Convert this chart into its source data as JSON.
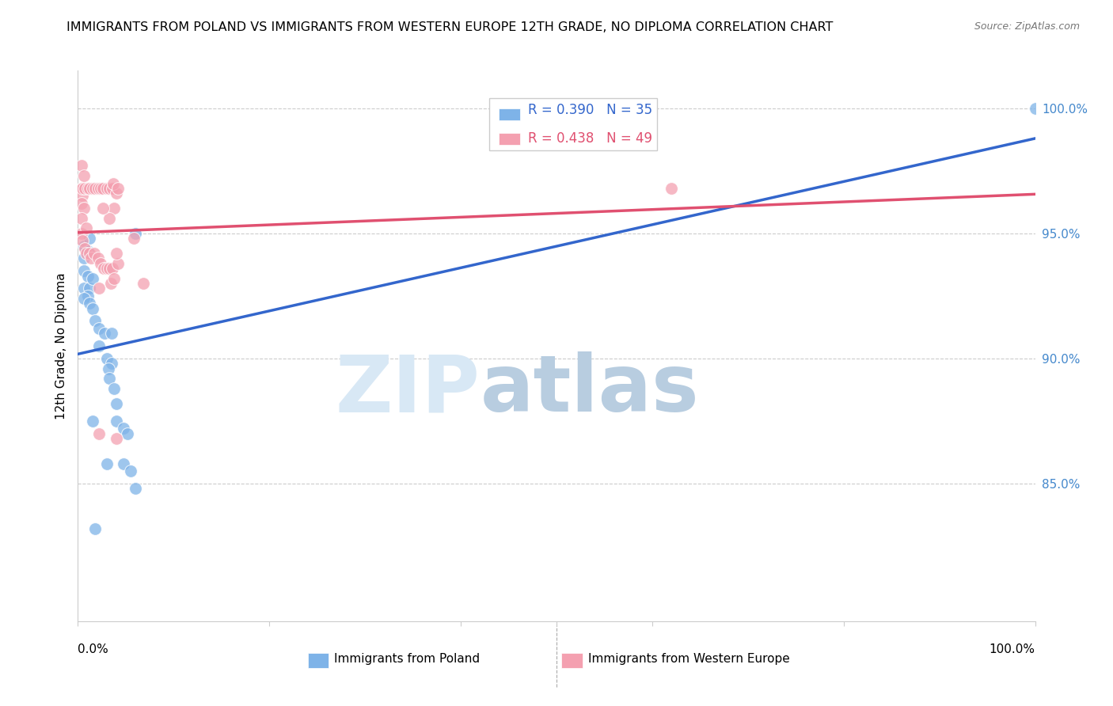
{
  "title": "IMMIGRANTS FROM POLAND VS IMMIGRANTS FROM WESTERN EUROPE 12TH GRADE, NO DIPLOMA CORRELATION CHART",
  "source": "Source: ZipAtlas.com",
  "ylabel": "12th Grade, No Diploma",
  "ylabel_right_ticks": [
    "100.0%",
    "95.0%",
    "90.0%",
    "85.0%"
  ],
  "ylabel_right_values": [
    1.0,
    0.95,
    0.9,
    0.85
  ],
  "legend_blue_label": "Immigrants from Poland",
  "legend_pink_label": "Immigrants from Western Europe",
  "blue_R": 0.39,
  "blue_N": 35,
  "pink_R": 0.438,
  "pink_N": 49,
  "blue_color": "#7EB3E8",
  "pink_color": "#F4A0B0",
  "blue_line_color": "#3366CC",
  "pink_line_color": "#E05070",
  "background_color": "#ffffff",
  "xlim": [
    0.0,
    1.0
  ],
  "ylim": [
    0.795,
    1.015
  ],
  "blue_scatter_x": [
    0.006,
    0.012,
    0.006,
    0.01,
    0.006,
    0.01,
    0.006,
    0.012,
    0.015,
    0.01,
    0.006,
    0.012,
    0.015,
    0.018,
    0.022,
    0.028,
    0.035,
    0.022,
    0.03,
    0.035,
    0.06,
    0.032,
    0.033,
    0.038,
    0.04,
    0.015,
    0.04,
    0.048,
    0.052,
    0.048,
    0.03,
    0.055,
    0.06,
    0.018,
    1.0
  ],
  "blue_scatter_y": [
    0.945,
    0.948,
    0.94,
    0.943,
    0.935,
    0.933,
    0.928,
    0.928,
    0.932,
    0.925,
    0.924,
    0.922,
    0.92,
    0.915,
    0.912,
    0.91,
    0.91,
    0.905,
    0.9,
    0.898,
    0.95,
    0.896,
    0.892,
    0.888,
    0.882,
    0.875,
    0.875,
    0.872,
    0.87,
    0.858,
    0.858,
    0.855,
    0.848,
    0.832,
    1.0
  ],
  "pink_scatter_x": [
    0.004,
    0.006,
    0.004,
    0.005,
    0.004,
    0.006,
    0.004,
    0.005,
    0.007,
    0.01,
    0.012,
    0.015,
    0.018,
    0.021,
    0.024,
    0.026,
    0.03,
    0.033,
    0.036,
    0.004,
    0.005,
    0.007,
    0.009,
    0.012,
    0.014,
    0.017,
    0.021,
    0.024,
    0.027,
    0.03,
    0.033,
    0.036,
    0.038,
    0.04,
    0.034,
    0.038,
    0.042,
    0.033,
    0.022,
    0.026,
    0.009,
    0.058,
    0.037,
    0.042,
    0.022,
    0.04,
    0.068,
    0.04,
    0.62
  ],
  "pink_scatter_y": [
    0.977,
    0.973,
    0.968,
    0.965,
    0.962,
    0.96,
    0.956,
    0.968,
    0.968,
    0.968,
    0.968,
    0.968,
    0.968,
    0.968,
    0.968,
    0.968,
    0.968,
    0.968,
    0.968,
    0.95,
    0.947,
    0.944,
    0.942,
    0.942,
    0.94,
    0.942,
    0.94,
    0.938,
    0.936,
    0.936,
    0.936,
    0.936,
    0.96,
    0.966,
    0.93,
    0.932,
    0.938,
    0.956,
    0.928,
    0.96,
    0.952,
    0.948,
    0.97,
    0.968,
    0.87,
    0.942,
    0.93,
    0.868,
    0.968
  ],
  "blue_line_x0": 0.0,
  "blue_line_y0": 0.905,
  "blue_line_x1": 1.0,
  "blue_line_y1": 1.005,
  "pink_line_x0": 0.0,
  "pink_line_y0": 0.96,
  "pink_line_x1": 1.0,
  "pink_line_y1": 0.98
}
